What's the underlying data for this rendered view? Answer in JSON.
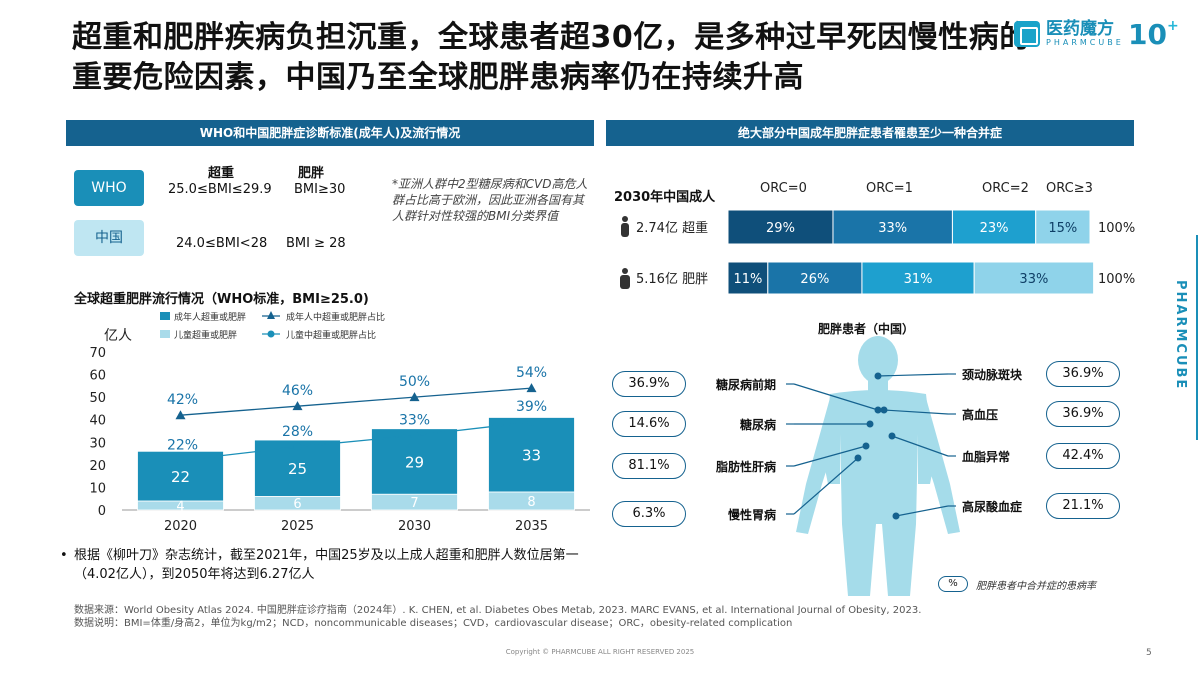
{
  "header": {
    "title_line1": "超重和肥胖疾病负担沉重，全球患者超30亿，是多种过早死因慢性病的",
    "title_line2": "重要危险因素，中国乃至全球肥胖患病率仍在持续升高",
    "logo_cn": "医药魔方",
    "logo_en": "PHARMCUBE",
    "anniversary": "10"
  },
  "left_section": {
    "title": "WHO和中国肥胖症诊断标准(成年人)及流行情况",
    "col_overweight": "超重",
    "col_obese": "肥胖",
    "who_label": "WHO",
    "who_overweight": "25.0≤BMI≤29.9",
    "who_obese": "BMI≥30",
    "china_label": "中国",
    "china_overweight": "24.0≤BMI<28",
    "china_obese": "BMI ≥ 28",
    "note": "*亚洲人群中2型糖尿病和CVD高危人群占比高于欧洲，因此亚洲各国有其人群针对性较强的BMI分类界值"
  },
  "chart_data": [
    {
      "type": "bar",
      "title": "全球超重肥胖流行情况（WHO标准，BMI≥25.0)",
      "ylabel": "亿人",
      "ylim": [
        0,
        70
      ],
      "yticks": [
        0,
        10,
        20,
        30,
        40,
        50,
        60,
        70
      ],
      "categories": [
        "2020",
        "2025",
        "2030",
        "2035"
      ],
      "series": [
        {
          "name": "成年人超重或肥胖",
          "values": [
            22,
            25,
            29,
            33
          ],
          "color": "#1a8fb8"
        },
        {
          "name": "儿童超重或肥胖",
          "values": [
            4,
            6,
            7,
            8
          ],
          "color": "#a9dbea"
        }
      ],
      "lines": [
        {
          "name": "成年人中超重或肥胖占比",
          "values": [
            42,
            46,
            50,
            54
          ],
          "labels": [
            "42%",
            "46%",
            "50%",
            "54%"
          ],
          "marker": "triangle",
          "color": "#15628f"
        },
        {
          "name": "儿童中超重或肥胖占比",
          "values": [
            22,
            28,
            33,
            39
          ],
          "labels": [
            "22%",
            "28%",
            "33%",
            "39%"
          ],
          "marker": "circle",
          "color": "#1a8fb8"
        }
      ]
    },
    {
      "type": "bar",
      "orientation": "horizontal-stacked",
      "title": "绝大部分中国成年肥胖症患者罹患至少一种合并症",
      "row_header": "2030年中国成人",
      "categories": [
        "ORC=0",
        "ORC=1",
        "ORC=2",
        "ORC≥3"
      ],
      "rows": [
        {
          "label": "2.74亿 超重",
          "values": [
            29,
            33,
            23,
            15
          ],
          "total": "100%"
        },
        {
          "label": "5.16亿 肥胖",
          "values": [
            11,
            26,
            31,
            33
          ],
          "total": "100%"
        }
      ],
      "colors": [
        "#0f4f7a",
        "#1a74a8",
        "#1ea0cf",
        "#8fd3ea"
      ]
    }
  ],
  "right_section": {
    "title": "绝大部分中国成年肥胖症患者罹患至少一种合并症",
    "obese_title": "肥胖患者（中国）",
    "left_conditions": [
      {
        "name": "糖尿病前期",
        "pct": "36.9%"
      },
      {
        "name": "糖尿病",
        "pct": "14.6%"
      },
      {
        "name": "脂肪性肝病",
        "pct": "81.1%"
      },
      {
        "name": "慢性胃病",
        "pct": "6.3%"
      }
    ],
    "right_conditions": [
      {
        "name": "颈动脉斑块",
        "pct": "36.9%"
      },
      {
        "name": "高血压",
        "pct": "36.9%"
      },
      {
        "name": "血脂异常",
        "pct": "42.4%"
      },
      {
        "name": "高尿酸血症",
        "pct": "21.1%"
      }
    ],
    "legend_symbol": "%",
    "legend_text": "肥胖患者中合并症的患病率"
  },
  "bullet": "根据《柳叶刀》杂志统计，截至2021年，中国25岁及以上成人超重和肥胖人数位居第一（4.02亿人），到2050年将达到6.27亿人",
  "source_line1": "数据来源：World Obesity Atlas 2024. 中国肥胖症诊疗指南（2024年）. K. CHEN, et al. Diabetes Obes Metab, 2023. MARC EVANS, et al. International Journal of Obesity, 2023.",
  "source_line2": "数据说明：BMI=体重/身高2，单位为kg/m2；NCD，noncommunicable diseases；CVD，cardiovascular disease；ORC，obesity-related complication",
  "copyright": "Copyright © PHARMCUBE ALL RIGHT RESERVED 2025",
  "page_number": "5",
  "side_word": "PHARMCUBE"
}
